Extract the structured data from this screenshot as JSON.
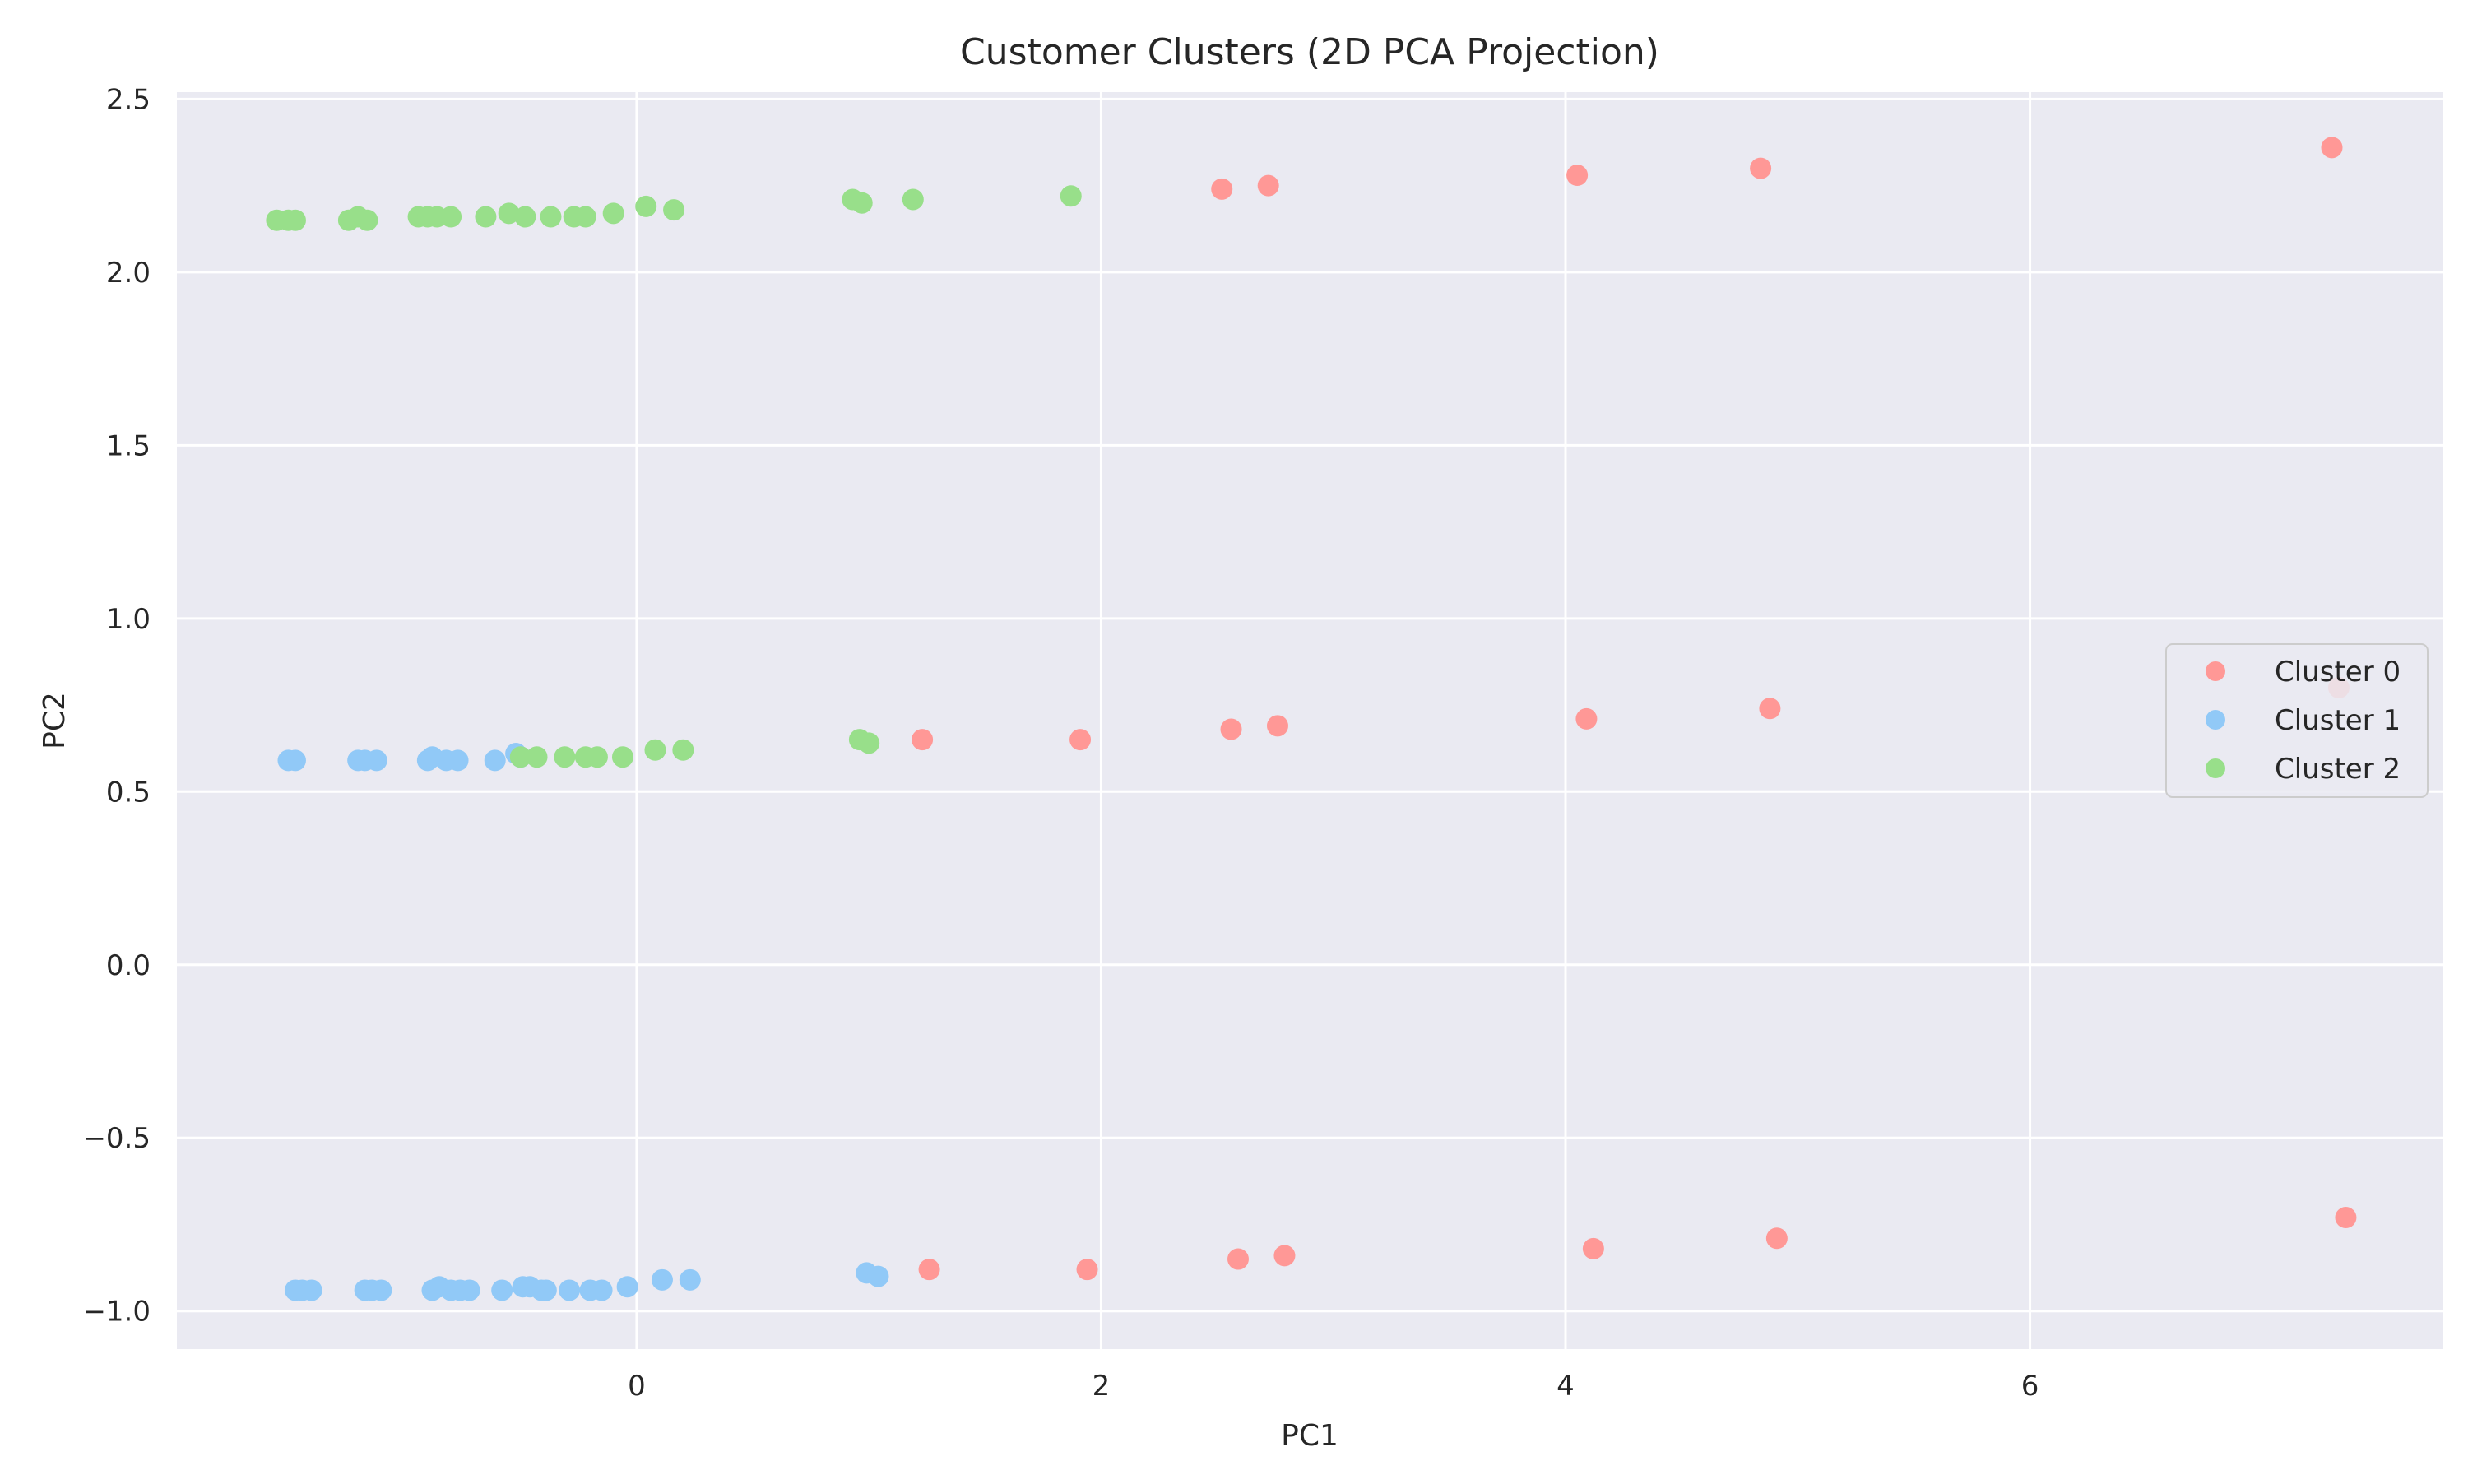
{
  "chart_data": {
    "type": "scatter",
    "title": "Customer Clusters (2D PCA Projection)",
    "xlabel": "PC1",
    "ylabel": "PC2",
    "xlim": [
      -1.98,
      7.78
    ],
    "ylim": [
      -1.11,
      2.52
    ],
    "xticks": [
      0,
      2,
      4,
      6
    ],
    "yticks": [
      -1.0,
      -0.5,
      0.0,
      0.5,
      1.0,
      1.5,
      2.0,
      2.5
    ],
    "ytick_labels": [
      "−1.0",
      "−0.5",
      "0.0",
      "0.5",
      "1.0",
      "1.5",
      "2.0",
      "2.5"
    ],
    "xtick_labels": [
      "0",
      "2",
      "4",
      "6"
    ],
    "grid": true,
    "legend_position": "center-right",
    "background": "#eaeaf2",
    "series": [
      {
        "name": "Cluster 0",
        "color": "#ff9896",
        "points": [
          [
            2.52,
            2.24
          ],
          [
            2.72,
            2.25
          ],
          [
            4.05,
            2.28
          ],
          [
            4.84,
            2.3
          ],
          [
            7.3,
            2.36
          ],
          [
            1.23,
            0.65
          ],
          [
            1.91,
            0.65
          ],
          [
            2.56,
            0.68
          ],
          [
            2.76,
            0.69
          ],
          [
            4.09,
            0.71
          ],
          [
            4.88,
            0.74
          ],
          [
            7.33,
            0.8
          ],
          [
            1.26,
            -0.88
          ],
          [
            1.94,
            -0.88
          ],
          [
            2.59,
            -0.85
          ],
          [
            2.79,
            -0.84
          ],
          [
            4.12,
            -0.82
          ],
          [
            4.91,
            -0.79
          ],
          [
            7.36,
            -0.73
          ]
        ]
      },
      {
        "name": "Cluster 1",
        "color": "#91c9f7",
        "points": [
          [
            -1.5,
            0.59
          ],
          [
            -1.47,
            0.59
          ],
          [
            -1.2,
            0.59
          ],
          [
            -1.17,
            0.59
          ],
          [
            -1.12,
            0.59
          ],
          [
            -0.9,
            0.59
          ],
          [
            -0.88,
            0.6
          ],
          [
            -0.82,
            0.59
          ],
          [
            -0.77,
            0.59
          ],
          [
            -0.61,
            0.59
          ],
          [
            -0.52,
            0.61
          ],
          [
            -0.5,
            0.6
          ],
          [
            -1.47,
            -0.94
          ],
          [
            -1.44,
            -0.94
          ],
          [
            -1.4,
            -0.94
          ],
          [
            -1.17,
            -0.94
          ],
          [
            -1.14,
            -0.94
          ],
          [
            -1.1,
            -0.94
          ],
          [
            -0.88,
            -0.94
          ],
          [
            -0.85,
            -0.93
          ],
          [
            -0.8,
            -0.94
          ],
          [
            -0.76,
            -0.94
          ],
          [
            -0.72,
            -0.94
          ],
          [
            -0.58,
            -0.94
          ],
          [
            -0.49,
            -0.93
          ],
          [
            -0.46,
            -0.93
          ],
          [
            -0.41,
            -0.94
          ],
          [
            -0.39,
            -0.94
          ],
          [
            -0.29,
            -0.94
          ],
          [
            -0.2,
            -0.94
          ],
          [
            -0.15,
            -0.94
          ],
          [
            -0.04,
            -0.93
          ],
          [
            0.11,
            -0.91
          ],
          [
            0.23,
            -0.91
          ],
          [
            0.99,
            -0.89
          ],
          [
            1.04,
            -0.9
          ]
        ]
      },
      {
        "name": "Cluster 2",
        "color": "#98df8a",
        "points": [
          [
            -1.55,
            2.15
          ],
          [
            -1.5,
            2.15
          ],
          [
            -1.47,
            2.15
          ],
          [
            -1.24,
            2.15
          ],
          [
            -1.2,
            2.16
          ],
          [
            -1.16,
            2.15
          ],
          [
            -0.94,
            2.16
          ],
          [
            -0.9,
            2.16
          ],
          [
            -0.86,
            2.16
          ],
          [
            -0.8,
            2.16
          ],
          [
            -0.65,
            2.16
          ],
          [
            -0.55,
            2.17
          ],
          [
            -0.48,
            2.16
          ],
          [
            -0.37,
            2.16
          ],
          [
            -0.27,
            2.16
          ],
          [
            -0.22,
            2.16
          ],
          [
            -0.1,
            2.17
          ],
          [
            0.04,
            2.19
          ],
          [
            0.16,
            2.18
          ],
          [
            0.93,
            2.21
          ],
          [
            0.97,
            2.2
          ],
          [
            1.19,
            2.21
          ],
          [
            1.87,
            2.22
          ],
          [
            -0.5,
            0.6
          ],
          [
            -0.43,
            0.6
          ],
          [
            -0.31,
            0.6
          ],
          [
            -0.22,
            0.6
          ],
          [
            -0.17,
            0.6
          ],
          [
            -0.06,
            0.6
          ],
          [
            0.08,
            0.62
          ],
          [
            0.2,
            0.62
          ],
          [
            0.96,
            0.65
          ],
          [
            1.0,
            0.64
          ]
        ]
      }
    ]
  }
}
